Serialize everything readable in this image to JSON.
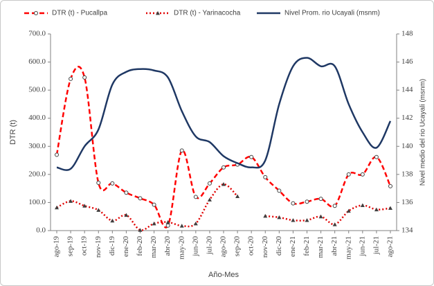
{
  "chart_data": {
    "type": "line",
    "y_label": "DTR (t)",
    "y2_label": "Nivel medio del rio Ucayali (msnm)",
    "x_label": "Año-Mes",
    "categories": [
      "ago-19",
      "sep-19",
      "oct-19",
      "nov-19",
      "dic-19",
      "ene-20",
      "feb-20",
      "mar-20",
      "abr-20",
      "may-20",
      "jun-20",
      "jul-20",
      "ago-20",
      "sep-20",
      "oct-20",
      "nov-20",
      "dic-20",
      "ene-21",
      "feb-21",
      "mar-21",
      "abr-21",
      "may-21",
      "jun-21",
      "jul-21",
      "ago-21"
    ],
    "ylim": [
      0,
      700
    ],
    "yticks": [
      {
        "value": 0,
        "label": "0.0"
      },
      {
        "value": 100,
        "label": "100.0"
      },
      {
        "value": 200,
        "label": "200.0"
      },
      {
        "value": 300,
        "label": "300.0"
      },
      {
        "value": 400,
        "label": "400.0"
      },
      {
        "value": 500,
        "label": "500.0"
      },
      {
        "value": 600,
        "label": "600.0"
      },
      {
        "value": 700,
        "label": "700.0"
      }
    ],
    "y2lim": [
      134,
      148
    ],
    "y2ticks": [
      134,
      136,
      138,
      140,
      142,
      144,
      146,
      148
    ],
    "series": [
      {
        "name": "DTR (t) - Pucallpa",
        "color": "#ff0000",
        "style": "dashed",
        "marker": "circle",
        "values": [
          270,
          540,
          545,
          170,
          168,
          135,
          115,
          92,
          18,
          285,
          120,
          168,
          225,
          235,
          262,
          190,
          142,
          97,
          103,
          113,
          88,
          200,
          200,
          262,
          158
        ]
      },
      {
        "name": "DTR (t) - Yarinacocha",
        "color": "#e00000",
        "style": "dotted",
        "marker": "triangle",
        "values": [
          82,
          105,
          88,
          73,
          35,
          55,
          2,
          25,
          30,
          17,
          25,
          110,
          165,
          122,
          null,
          52,
          47,
          37,
          37,
          50,
          22,
          70,
          90,
          75,
          80
        ]
      },
      {
        "name": "Nivel Prom. rio Ucayali  (msnm)",
        "color": "#1f3864",
        "style": "solid",
        "axis": "y2",
        "values": [
          138.5,
          138.4,
          140,
          141.2,
          144.4,
          145.3,
          145.5,
          145.4,
          144.9,
          142.5,
          140.7,
          140.3,
          139.3,
          138.8,
          138.5,
          139,
          143,
          145.7,
          146.3,
          145.7,
          145.7,
          143,
          141,
          139.9,
          141.8
        ]
      }
    ]
  }
}
